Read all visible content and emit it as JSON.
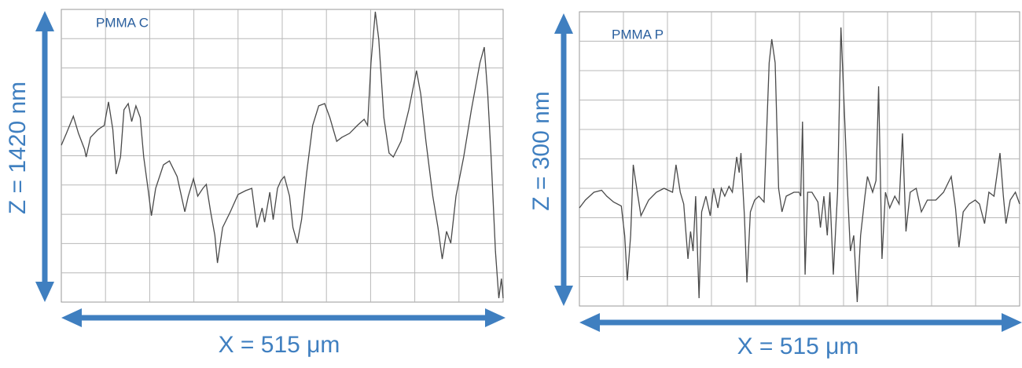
{
  "chart_data": [
    {
      "type": "line",
      "title": "PMMA C",
      "xlabel": "X = 515 μm",
      "ylabel": "Z = 1420 nm",
      "color": "#4a4a4a",
      "grid": true,
      "xlim": [
        0,
        515
      ],
      "ylim": [
        0,
        1420
      ],
      "x": [
        0,
        6,
        14,
        20,
        27,
        29,
        34,
        43,
        50,
        55,
        60,
        64,
        69,
        73,
        78,
        82,
        87,
        92,
        96,
        101,
        105,
        110,
        119,
        126,
        135,
        144,
        148,
        154,
        159,
        165,
        169,
        174,
        179,
        182,
        188,
        197,
        206,
        215,
        222,
        228,
        234,
        237,
        243,
        247,
        252,
        256,
        260,
        266,
        270,
        275,
        280,
        286,
        293,
        300,
        307,
        313,
        321,
        327,
        336,
        345,
        353,
        357,
        361,
        366,
        370,
        376,
        382,
        387,
        396,
        405,
        414,
        419,
        425,
        433,
        439,
        444,
        449,
        454,
        460,
        469,
        478,
        488,
        493,
        497,
        501,
        506,
        510,
        513,
        515
      ],
      "values": [
        761,
        819,
        902,
        819,
        742,
        704,
        799,
        838,
        857,
        971,
        838,
        621,
        704,
        933,
        963,
        876,
        952,
        895,
        704,
        552,
        419,
        552,
        666,
        685,
        609,
        438,
        514,
        598,
        514,
        552,
        571,
        438,
        324,
        190,
        362,
        438,
        522,
        541,
        552,
        362,
        457,
        388,
        533,
        400,
        552,
        590,
        609,
        514,
        362,
        286,
        400,
        628,
        857,
        952,
        963,
        895,
        780,
        799,
        819,
        857,
        887,
        857,
        1161,
        1409,
        1275,
        895,
        723,
        704,
        780,
        933,
        1123,
        1009,
        780,
        514,
        362,
        209,
        343,
        286,
        514,
        704,
        933,
        1161,
        1237,
        1009,
        704,
        247,
        19,
        114,
        19
      ]
    },
    {
      "type": "line",
      "title": "PMMA P",
      "xlabel": "X = 515 μm",
      "ylabel": "Z = 300 nm",
      "color": "#4a4a4a",
      "grid": true,
      "xlim": [
        0,
        515
      ],
      "ylim": [
        0,
        300
      ],
      "x": [
        0,
        7,
        17,
        26,
        32,
        40,
        49,
        53,
        56,
        60,
        63,
        67,
        72,
        81,
        90,
        99,
        109,
        113,
        118,
        122,
        127,
        130,
        133,
        136,
        140,
        143,
        148,
        153,
        157,
        162,
        166,
        170,
        175,
        179,
        184,
        187,
        189,
        193,
        196,
        200,
        205,
        210,
        216,
        222,
        225,
        229,
        233,
        237,
        242,
        251,
        257,
        259,
        261,
        264,
        267,
        272,
        279,
        282,
        286,
        290,
        293,
        297,
        302,
        306,
        311,
        314,
        317,
        321,
        325,
        329,
        334,
        337,
        343,
        347,
        350,
        354,
        358,
        363,
        369,
        374,
        378,
        382,
        387,
        394,
        400,
        407,
        417,
        426,
        435,
        440,
        444,
        449,
        456,
        463,
        468,
        474,
        479,
        485,
        492,
        496,
        499,
        504,
        510,
        515
      ],
      "values": [
        100,
        108,
        116,
        118,
        112,
        106,
        102,
        72,
        26,
        72,
        144,
        120,
        92,
        108,
        116,
        120,
        116,
        144,
        116,
        104,
        48,
        76,
        56,
        112,
        8,
        96,
        112,
        92,
        120,
        100,
        120,
        112,
        122,
        116,
        152,
        136,
        156,
        92,
        24,
        96,
        108,
        112,
        106,
        248,
        272,
        248,
        120,
        96,
        112,
        116,
        116,
        112,
        188,
        32,
        116,
        116,
        106,
        80,
        112,
        72,
        116,
        32,
        116,
        284,
        176,
        112,
        56,
        72,
        4,
        72,
        112,
        132,
        116,
        128,
        224,
        48,
        116,
        100,
        112,
        104,
        176,
        76,
        116,
        120,
        96,
        108,
        108,
        116,
        132,
        100,
        60,
        96,
        104,
        108,
        104,
        84,
        116,
        112,
        156,
        112,
        84,
        108,
        116,
        104
      ]
    }
  ]
}
